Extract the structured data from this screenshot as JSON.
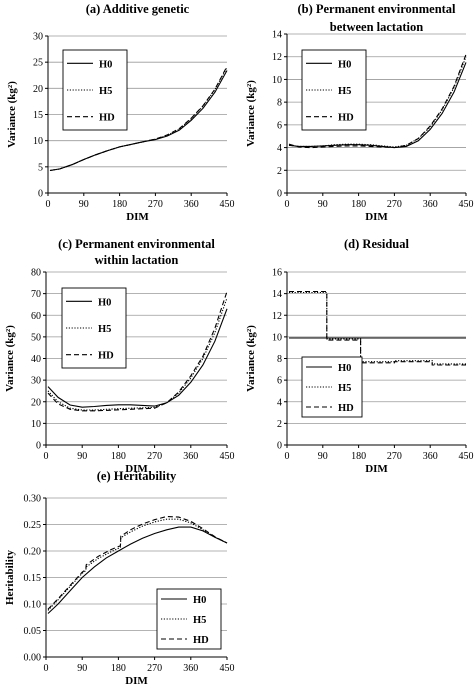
{
  "chart_data": [
    {
      "id": "a",
      "type": "line",
      "title": "(a) Additive genetic",
      "xlabel": "DIM",
      "ylabel": "Variance (kg²)",
      "xlim": [
        0,
        450
      ],
      "ylim": [
        0,
        30
      ],
      "xticks": [
        0,
        90,
        180,
        270,
        360,
        450
      ],
      "xtick_labels": [
        "0",
        "90",
        "180",
        "270",
        "360",
        "450"
      ],
      "yticks": [
        0,
        5,
        10,
        15,
        20,
        25,
        30
      ],
      "ytick_labels": [
        "0",
        "5",
        "10",
        "15",
        "20",
        "25",
        "30"
      ],
      "grid": "horizontal",
      "legend": "top-left",
      "series": [
        {
          "name": "H0",
          "style": "solid",
          "x": [
            5,
            30,
            60,
            90,
            120,
            150,
            180,
            210,
            240,
            270,
            300,
            330,
            360,
            390,
            420,
            450
          ],
          "y": [
            4.3,
            4.6,
            5.4,
            6.4,
            7.3,
            8.1,
            8.8,
            9.3,
            9.8,
            10.2,
            10.9,
            12.0,
            13.9,
            16.2,
            19.3,
            23.4
          ]
        },
        {
          "name": "H5",
          "style": "dotted",
          "x": [
            5,
            30,
            60,
            90,
            120,
            150,
            180,
            210,
            240,
            270,
            300,
            330,
            360,
            390,
            420,
            450
          ],
          "y": [
            4.3,
            4.6,
            5.4,
            6.4,
            7.3,
            8.1,
            8.8,
            9.3,
            9.8,
            10.3,
            11.0,
            12.2,
            14.2,
            16.6,
            19.8,
            24.0
          ]
        },
        {
          "name": "HD",
          "style": "dashed",
          "x": [
            5,
            30,
            60,
            90,
            120,
            150,
            180,
            210,
            240,
            270,
            300,
            330,
            360,
            390,
            420,
            450
          ],
          "y": [
            4.3,
            4.6,
            5.4,
            6.4,
            7.3,
            8.1,
            8.8,
            9.3,
            9.8,
            10.3,
            11.1,
            12.3,
            14.3,
            16.7,
            19.9,
            24.2
          ]
        }
      ]
    },
    {
      "id": "b",
      "type": "line",
      "title": "(b) Permanent environmental between lactation",
      "title_lines": [
        "(b) Permanent environmental",
        "between lactation"
      ],
      "xlabel": "DIM",
      "ylabel": "Variance (kg²)",
      "xlim": [
        0,
        450
      ],
      "ylim": [
        0,
        14
      ],
      "xticks": [
        0,
        90,
        180,
        270,
        360,
        450
      ],
      "xtick_labels": [
        "0",
        "90",
        "180",
        "270",
        "360",
        "450"
      ],
      "yticks": [
        0,
        2,
        4,
        6,
        8,
        10,
        12,
        14
      ],
      "ytick_labels": [
        "0",
        "2",
        "4",
        "6",
        "8",
        "10",
        "12",
        "14"
      ],
      "grid": "horizontal",
      "legend": "top-left",
      "series": [
        {
          "name": "H0",
          "style": "solid",
          "x": [
            5,
            30,
            60,
            90,
            120,
            150,
            180,
            210,
            240,
            270,
            300,
            330,
            360,
            390,
            420,
            450
          ],
          "y": [
            4.2,
            4.1,
            4.1,
            4.15,
            4.2,
            4.25,
            4.25,
            4.2,
            4.1,
            4.0,
            4.1,
            4.6,
            5.6,
            7.0,
            8.9,
            11.5
          ]
        },
        {
          "name": "H5",
          "style": "dotted",
          "x": [
            5,
            30,
            60,
            90,
            120,
            150,
            180,
            210,
            240,
            270,
            300,
            330,
            360,
            390,
            420,
            450
          ],
          "y": [
            4.2,
            4.1,
            4.1,
            4.15,
            4.25,
            4.3,
            4.3,
            4.25,
            4.15,
            4.05,
            4.2,
            4.8,
            5.8,
            7.3,
            9.3,
            12.0
          ]
        },
        {
          "name": "HD",
          "style": "dashed",
          "x": [
            5,
            30,
            60,
            90,
            120,
            150,
            180,
            210,
            240,
            270,
            300,
            330,
            360,
            390,
            420,
            450
          ],
          "y": [
            4.3,
            4.05,
            4.0,
            4.05,
            4.1,
            4.15,
            4.15,
            4.1,
            4.05,
            4.0,
            4.2,
            4.8,
            5.9,
            7.4,
            9.4,
            12.2
          ]
        }
      ]
    },
    {
      "id": "c",
      "type": "line",
      "title": "(c) Permanent environmental within lactation",
      "title_lines": [
        "(c) Permanent environmental",
        "within lactation"
      ],
      "xlabel": "DIM",
      "ylabel": "Variance (kg²)",
      "xlim": [
        0,
        450
      ],
      "ylim": [
        0,
        80
      ],
      "xticks": [
        0,
        90,
        180,
        270,
        360,
        450
      ],
      "xtick_labels": [
        "0",
        "90",
        "180",
        "270",
        "360",
        "450"
      ],
      "yticks": [
        0,
        10,
        20,
        30,
        40,
        50,
        60,
        70,
        80
      ],
      "ytick_labels": [
        "0",
        "10",
        "20",
        "30",
        "40",
        "50",
        "60",
        "70",
        "80"
      ],
      "grid": "horizontal",
      "legend": "top-left",
      "series": [
        {
          "name": "H0",
          "style": "solid",
          "x": [
            5,
            30,
            60,
            90,
            120,
            150,
            180,
            210,
            240,
            270,
            300,
            330,
            360,
            390,
            420,
            450
          ],
          "y": [
            27,
            22,
            18.5,
            17.5,
            17.8,
            18.3,
            18.6,
            18.6,
            18.3,
            18.0,
            19.5,
            23,
            29,
            37,
            48,
            63
          ]
        },
        {
          "name": "H5",
          "style": "dotted",
          "x": [
            5,
            30,
            60,
            90,
            120,
            150,
            180,
            210,
            240,
            270,
            300,
            330,
            360,
            390,
            420,
            450
          ],
          "y": [
            25,
            20,
            17,
            16.2,
            16.2,
            16.5,
            16.8,
            17.0,
            17.2,
            17.4,
            19.5,
            24,
            31,
            40,
            52,
            68
          ]
        },
        {
          "name": "HD",
          "style": "dashed",
          "x": [
            5,
            30,
            60,
            90,
            120,
            150,
            180,
            210,
            240,
            270,
            300,
            330,
            360,
            390,
            420,
            450
          ],
          "y": [
            24,
            19,
            16.5,
            15.8,
            15.8,
            16.0,
            16.3,
            16.5,
            16.8,
            17.0,
            19.5,
            24.5,
            32,
            41,
            54,
            71
          ]
        }
      ]
    },
    {
      "id": "d",
      "type": "line",
      "title": "(d) Residual",
      "xlabel": "DIM",
      "ylabel": "Variance (kg²)",
      "xlim": [
        0,
        450
      ],
      "ylim": [
        0,
        16
      ],
      "xticks": [
        0,
        90,
        180,
        270,
        360,
        450
      ],
      "xtick_labels": [
        "0",
        "90",
        "180",
        "270",
        "360",
        "450"
      ],
      "yticks": [
        0,
        2,
        4,
        6,
        8,
        10,
        12,
        14,
        16
      ],
      "ytick_labels": [
        "0",
        "2",
        "4",
        "6",
        "8",
        "10",
        "12",
        "14",
        "16"
      ],
      "grid": "horizontal",
      "legend": "bottom-left",
      "series": [
        {
          "name": "H0",
          "style": "solid",
          "x": [
            5,
            450
          ],
          "y": [
            9.9,
            9.9
          ]
        },
        {
          "name": "H5",
          "style": "dotted",
          "x": [
            5,
            100,
            100,
            185,
            185,
            270,
            270,
            365,
            365,
            450
          ],
          "y": [
            14.1,
            14.1,
            9.8,
            9.8,
            7.7,
            7.7,
            7.8,
            7.8,
            7.5,
            7.5
          ]
        },
        {
          "name": "HD",
          "style": "dashed",
          "x": [
            5,
            100,
            100,
            185,
            185,
            270,
            270,
            365,
            365,
            450
          ],
          "y": [
            14.2,
            14.2,
            9.7,
            9.7,
            7.6,
            7.6,
            7.7,
            7.7,
            7.4,
            7.4
          ]
        }
      ]
    },
    {
      "id": "e",
      "type": "line",
      "title": "(e) Heritability",
      "xlabel": "DIM",
      "ylabel": "Heritability",
      "xlim": [
        0,
        450
      ],
      "ylim": [
        0,
        0.3
      ],
      "xticks": [
        0,
        90,
        180,
        270,
        360,
        450
      ],
      "xtick_labels": [
        "0",
        "90",
        "180",
        "270",
        "360",
        "450"
      ],
      "yticks": [
        0,
        0.05,
        0.1,
        0.15,
        0.2,
        0.25,
        0.3
      ],
      "ytick_labels": [
        "0.00",
        "0.05",
        "0.10",
        "0.15",
        "0.20",
        "0.25",
        "0.30"
      ],
      "grid": "horizontal",
      "legend": "bottom-right",
      "series": [
        {
          "name": "H0",
          "style": "solid",
          "x": [
            5,
            30,
            60,
            90,
            120,
            150,
            180,
            210,
            240,
            270,
            300,
            330,
            360,
            390,
            420,
            450
          ],
          "y": [
            0.082,
            0.1,
            0.125,
            0.15,
            0.17,
            0.187,
            0.2,
            0.213,
            0.224,
            0.233,
            0.24,
            0.245,
            0.245,
            0.238,
            0.226,
            0.215
          ]
        },
        {
          "name": "H5",
          "style": "dotted",
          "x": [
            5,
            30,
            60,
            90,
            99,
            100,
            130,
            160,
            185,
            186,
            210,
            240,
            270,
            300,
            330,
            360,
            390,
            420,
            450
          ],
          "y": [
            0.088,
            0.108,
            0.133,
            0.158,
            0.163,
            0.17,
            0.186,
            0.198,
            0.207,
            0.225,
            0.236,
            0.247,
            0.255,
            0.26,
            0.26,
            0.253,
            0.24,
            0.226,
            0.215
          ]
        },
        {
          "name": "HD",
          "style": "dashed",
          "x": [
            5,
            30,
            60,
            90,
            99,
            100,
            130,
            160,
            185,
            186,
            210,
            240,
            270,
            300,
            330,
            360,
            390,
            420,
            450
          ],
          "y": [
            0.09,
            0.11,
            0.135,
            0.16,
            0.165,
            0.174,
            0.19,
            0.202,
            0.21,
            0.228,
            0.24,
            0.251,
            0.259,
            0.265,
            0.264,
            0.256,
            0.242,
            0.227,
            0.215
          ]
        }
      ]
    }
  ]
}
